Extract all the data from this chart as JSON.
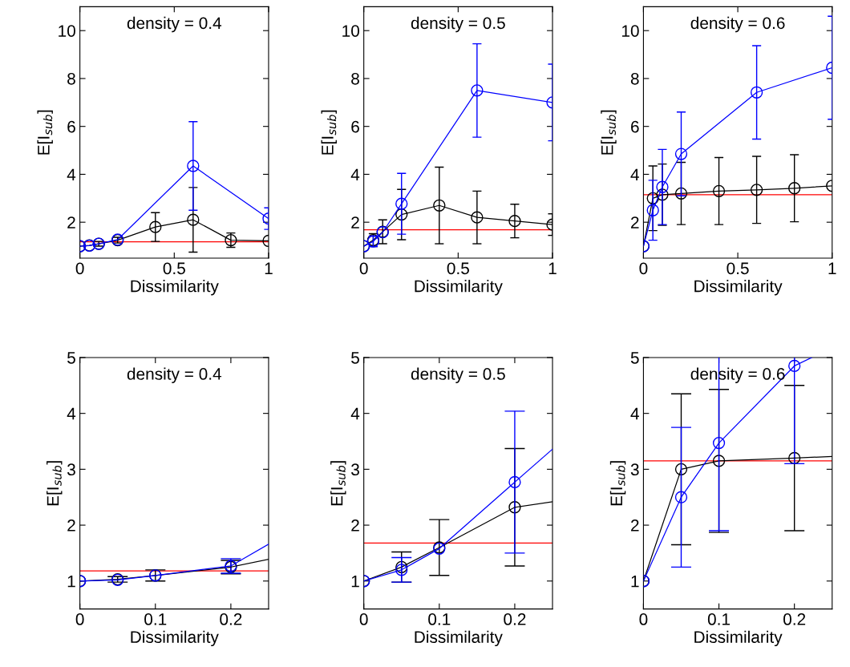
{
  "chart_data": [
    {
      "type": "line",
      "title": "density = 0.4",
      "xlabel": "Dissimilarity",
      "ylabel": "E[I$_{sub}$]",
      "xlim": [
        0,
        1
      ],
      "xticks": [
        0,
        0.5,
        1
      ],
      "ylim": [
        0.5,
        11
      ],
      "yticks": [
        2,
        4,
        6,
        8,
        10
      ],
      "marker": "circle",
      "grid": false,
      "legend": false,
      "series": [
        {
          "color": "#000000",
          "x": [
            0,
            0.05,
            0.1,
            0.2,
            0.4,
            0.6,
            0.8,
            1
          ],
          "values": [
            1.0,
            1.03,
            1.1,
            1.25,
            1.8,
            2.1,
            1.25,
            1.22
          ],
          "errors": [
            null,
            null,
            0.1,
            0.12,
            0.6,
            1.35,
            0.3,
            null
          ]
        },
        {
          "color": "#0000ff",
          "x": [
            0,
            0.05,
            0.1,
            0.2,
            0.6,
            1
          ],
          "values": [
            1.0,
            1.02,
            1.1,
            1.27,
            4.35,
            2.15
          ],
          "errors": [
            null,
            null,
            null,
            null,
            1.85,
            0.45
          ]
        }
      ],
      "ref_lines": [
        {
          "axis": "y",
          "value": 1.18,
          "color": "#ff0000"
        }
      ]
    },
    {
      "type": "line",
      "title": "density = 0.5",
      "xlabel": "Dissimilarity",
      "ylabel": "E[I$_{sub}$]",
      "xlim": [
        0,
        1
      ],
      "xticks": [
        0,
        0.5,
        1
      ],
      "ylim": [
        0.5,
        11
      ],
      "yticks": [
        2,
        4,
        6,
        8,
        10
      ],
      "marker": "circle",
      "grid": false,
      "legend": false,
      "series": [
        {
          "color": "#000000",
          "x": [
            0,
            0.05,
            0.1,
            0.2,
            0.4,
            0.6,
            0.8,
            1
          ],
          "values": [
            1.0,
            1.25,
            1.6,
            2.32,
            2.7,
            2.2,
            2.05,
            1.9
          ],
          "errors": [
            null,
            0.27,
            0.5,
            1.05,
            1.6,
            1.1,
            0.7,
            0.45
          ]
        },
        {
          "color": "#0000ff",
          "x": [
            0,
            0.05,
            0.1,
            0.2,
            0.6,
            1
          ],
          "values": [
            1.0,
            1.2,
            1.58,
            2.77,
            7.5,
            7.0
          ],
          "errors": [
            null,
            0.22,
            null,
            1.27,
            1.95,
            1.6
          ]
        }
      ],
      "ref_lines": [
        {
          "axis": "y",
          "value": 1.68,
          "color": "#ff0000"
        }
      ]
    },
    {
      "type": "line",
      "title": "density = 0.6",
      "xlabel": "Dissimilarity",
      "ylabel": "E[I$_{sub}$]",
      "xlim": [
        0,
        1
      ],
      "xticks": [
        0,
        0.5,
        1
      ],
      "ylim": [
        0.5,
        11
      ],
      "yticks": [
        2,
        4,
        6,
        8,
        10
      ],
      "marker": "circle",
      "grid": false,
      "legend": false,
      "series": [
        {
          "color": "#000000",
          "x": [
            0,
            0.05,
            0.1,
            0.2,
            0.4,
            0.6,
            0.8,
            1
          ],
          "values": [
            1.0,
            3.0,
            3.15,
            3.2,
            3.3,
            3.35,
            3.42,
            3.52
          ],
          "errors": [
            null,
            1.35,
            1.28,
            1.3,
            1.4,
            1.4,
            1.4,
            null
          ]
        },
        {
          "color": "#0000ff",
          "x": [
            0,
            0.05,
            0.1,
            0.2,
            0.6,
            1
          ],
          "values": [
            1.0,
            2.5,
            3.47,
            4.85,
            7.42,
            8.45
          ],
          "errors": [
            null,
            1.25,
            1.57,
            1.75,
            1.95,
            2.15
          ]
        }
      ],
      "ref_lines": [
        {
          "axis": "y",
          "value": 3.15,
          "color": "#ff0000"
        }
      ]
    },
    {
      "type": "line",
      "title": "density = 0.4",
      "xlabel": "Dissimilarity",
      "ylabel": "E[I$_{sub}$]",
      "xlim": [
        0,
        0.25
      ],
      "xticks": [
        0,
        0.1,
        0.2
      ],
      "ylim": [
        0.5,
        5
      ],
      "yticks": [
        1,
        2,
        3,
        4,
        5
      ],
      "marker": "circle",
      "grid": false,
      "legend": false,
      "series": [
        {
          "color": "#000000",
          "x": [
            0,
            0.05,
            0.1,
            0.2
          ],
          "values": [
            1.0,
            1.03,
            1.1,
            1.25
          ],
          "errors": [
            null,
            0.05,
            0.1,
            0.12
          ]
        },
        {
          "color": "#0000ff",
          "x": [
            0,
            0.05,
            0.1,
            0.2
          ],
          "values": [
            1.0,
            1.02,
            1.1,
            1.27
          ],
          "errors": [
            null,
            null,
            null,
            0.13
          ]
        },
        {
          "color": "#000000",
          "marker": "none",
          "x": [
            0.2,
            0.25
          ],
          "values": [
            1.25,
            1.39
          ]
        },
        {
          "color": "#0000ff",
          "marker": "none",
          "x": [
            0.2,
            0.25
          ],
          "values": [
            1.27,
            1.66
          ]
        }
      ],
      "ref_lines": [
        {
          "axis": "y",
          "value": 1.18,
          "color": "#ff0000"
        }
      ]
    },
    {
      "type": "line",
      "title": "density = 0.5",
      "xlabel": "Dissimilarity",
      "ylabel": "E[I$_{sub}$]",
      "xlim": [
        0,
        0.25
      ],
      "xticks": [
        0,
        0.1,
        0.2
      ],
      "ylim": [
        0.5,
        5
      ],
      "yticks": [
        1,
        2,
        3,
        4,
        5
      ],
      "marker": "circle",
      "grid": false,
      "legend": false,
      "series": [
        {
          "color": "#000000",
          "x": [
            0,
            0.05,
            0.1,
            0.2
          ],
          "values": [
            1.0,
            1.25,
            1.6,
            2.32
          ],
          "errors": [
            null,
            0.27,
            0.5,
            1.05
          ]
        },
        {
          "color": "#0000ff",
          "x": [
            0,
            0.05,
            0.1,
            0.2
          ],
          "values": [
            1.0,
            1.2,
            1.58,
            2.77
          ],
          "errors": [
            null,
            0.22,
            null,
            1.27
          ]
        },
        {
          "color": "#000000",
          "marker": "none",
          "x": [
            0.2,
            0.25
          ],
          "values": [
            2.32,
            2.42
          ]
        },
        {
          "color": "#0000ff",
          "marker": "none",
          "x": [
            0.2,
            0.25
          ],
          "values": [
            2.77,
            3.36
          ]
        }
      ],
      "ref_lines": [
        {
          "axis": "y",
          "value": 1.68,
          "color": "#ff0000"
        }
      ]
    },
    {
      "type": "line",
      "title": "density = 0.6",
      "xlabel": "Dissimilarity",
      "ylabel": "E[I$_{sub}$]",
      "xlim": [
        0,
        0.25
      ],
      "xticks": [
        0,
        0.1,
        0.2
      ],
      "ylim": [
        0.5,
        5
      ],
      "yticks": [
        1,
        2,
        3,
        4,
        5
      ],
      "marker": "circle",
      "grid": false,
      "legend": false,
      "series": [
        {
          "color": "#000000",
          "x": [
            0,
            0.05,
            0.1,
            0.2
          ],
          "values": [
            1.0,
            3.0,
            3.15,
            3.2
          ],
          "errors": [
            null,
            1.35,
            1.28,
            1.3
          ]
        },
        {
          "color": "#0000ff",
          "x": [
            0,
            0.05,
            0.1,
            0.2
          ],
          "values": [
            1.0,
            2.5,
            3.47,
            4.85
          ],
          "errors": [
            null,
            1.25,
            1.57,
            1.75
          ]
        },
        {
          "color": "#000000",
          "marker": "none",
          "x": [
            0.2,
            0.25
          ],
          "values": [
            3.2,
            3.23
          ]
        },
        {
          "color": "#0000ff",
          "marker": "none",
          "x": [
            0.2,
            0.223
          ],
          "values": [
            4.85,
            5.0
          ]
        }
      ],
      "ref_lines": [
        {
          "axis": "y",
          "value": 3.15,
          "color": "#ff0000"
        }
      ]
    }
  ]
}
